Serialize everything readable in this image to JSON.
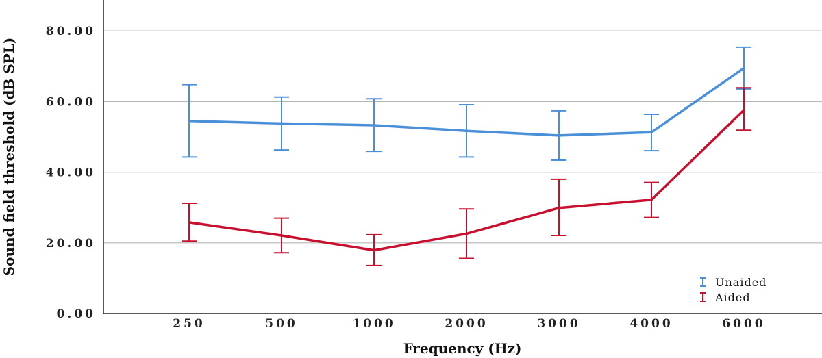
{
  "chart_data": {
    "type": "line",
    "title": "",
    "xlabel": "Frequency (Hz)",
    "ylabel": "Sound field threshold (dB SPL)",
    "categories": [
      "250",
      "500",
      "1000",
      "2000",
      "3000",
      "4000",
      "6000"
    ],
    "ylim": [
      0,
      80
    ],
    "yticks": [
      "0.00",
      "20.00",
      "40.00",
      "60.00",
      "80.00"
    ],
    "grid": true,
    "legend_position": "bottom-right",
    "series": [
      {
        "name": "Unaided",
        "color": "#4a90d9",
        "values": [
          54.5,
          53.8,
          53.3,
          51.7,
          50.4,
          51.3,
          69.5
        ],
        "err_low": [
          44.3,
          46.3,
          45.9,
          44.3,
          43.4,
          46.1,
          63.6
        ],
        "err_high": [
          64.8,
          61.3,
          60.8,
          59.1,
          57.4,
          56.4,
          75.4
        ]
      },
      {
        "name": "Aided",
        "color": "#c8102e",
        "values": [
          25.8,
          22.1,
          17.9,
          22.6,
          29.9,
          32.2,
          57.6
        ],
        "err_low": [
          20.5,
          17.2,
          13.6,
          15.6,
          22.1,
          27.2,
          51.9
        ],
        "err_high": [
          31.2,
          27.0,
          22.3,
          29.6,
          38.0,
          37.1,
          63.9
        ]
      }
    ]
  }
}
